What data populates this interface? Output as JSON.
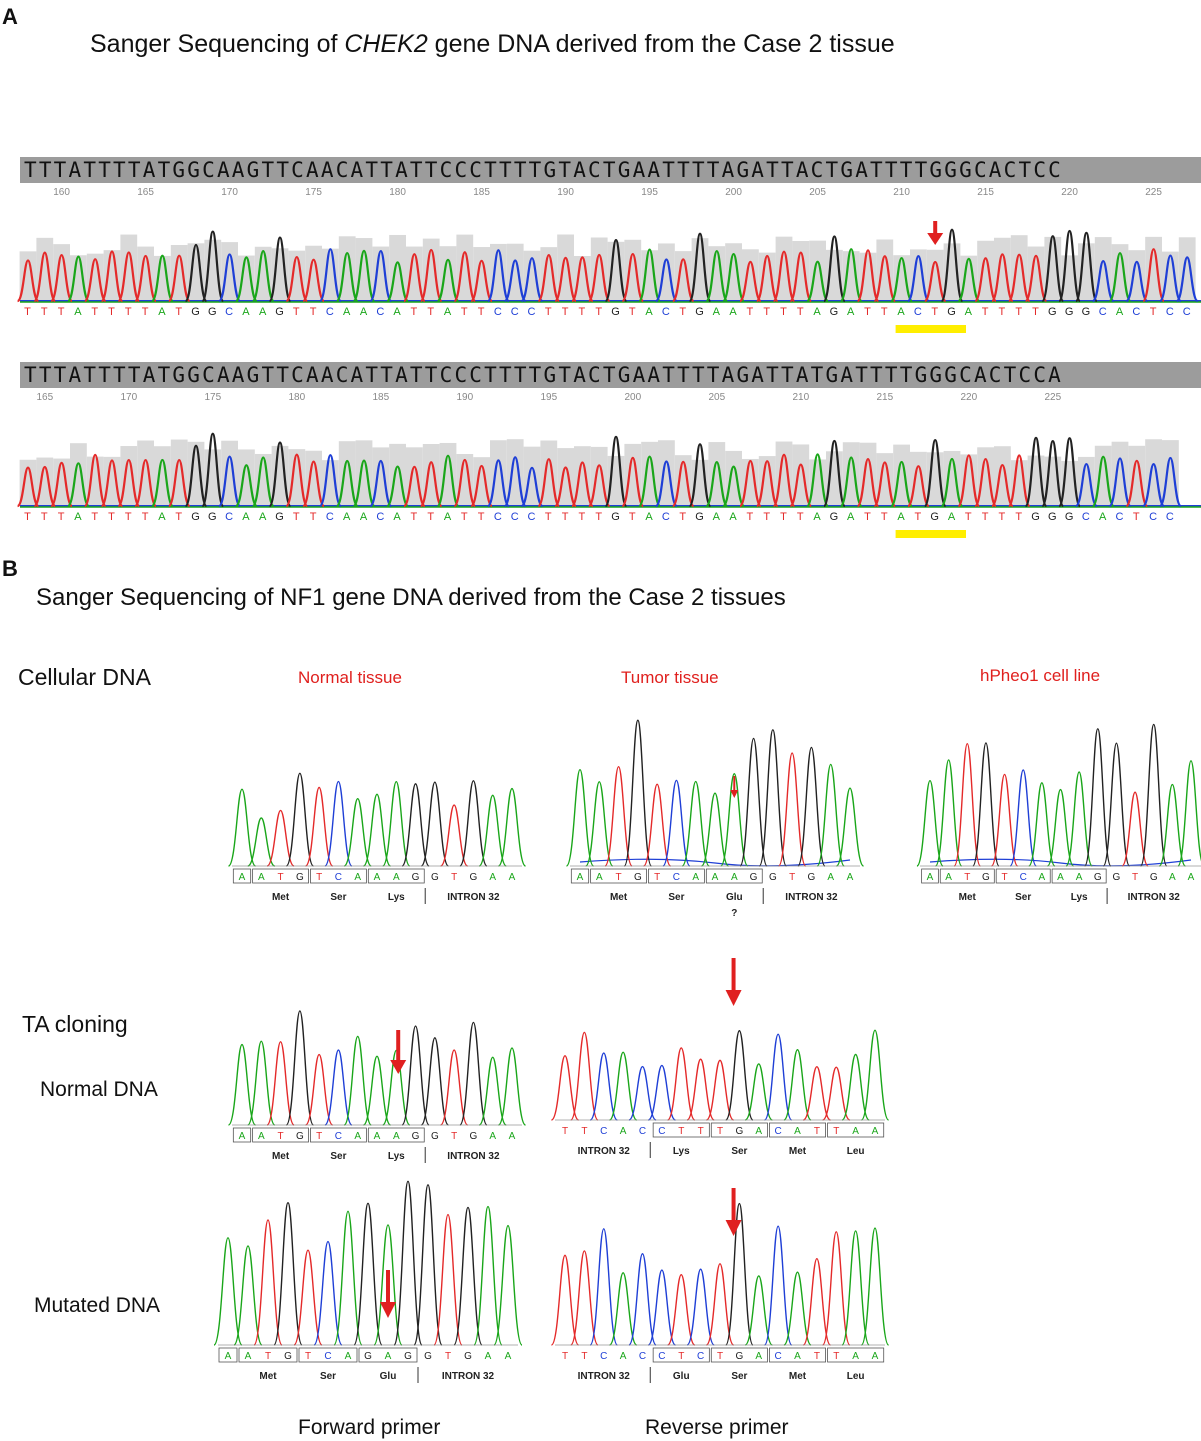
{
  "panel_a": {
    "letter": "A",
    "title_prefix": "Sanger Sequencing of ",
    "title_gene": "CHEK2",
    "title_suffix": " gene DNA derived from the Case 2 tissue",
    "track1": {
      "sequence": "TTTATTTTATGGCAAGTTCAACATTATTCCCTTTTGTACTGAATTTTAGATTACTGATTTTGGGCACTCC",
      "ticks": [
        "160",
        "165",
        "170",
        "175",
        "180",
        "185",
        "190",
        "195",
        "200",
        "205",
        "210",
        "215",
        "220",
        "225"
      ],
      "basecalls": "TTTATTTTATGGCAAGTTCAACATTATTCCCTTTTGTACTGAATTTTAGATTACTGATTTTGGGCACTCC",
      "highlight": "ACT"
    },
    "track2": {
      "sequence": "TTTATTTTATGGCAAGTTCAACATTATTCCCTTTTGTACTGAATTTTAGATTATGATTTTGGGCACTCCA",
      "ticks": [
        "165",
        "170",
        "175",
        "180",
        "185",
        "190",
        "195",
        "200",
        "205",
        "210",
        "215",
        "220",
        "225"
      ],
      "basecalls": "TTTATTTTATGGCAAGTTCAACATTATTCCCTTTTGTACTGAATTTTAGATTATGATTTTGGGCACTCC",
      "highlight": "ATG"
    }
  },
  "panel_b": {
    "letter": "B",
    "title": "Sanger Sequencing of NF1 gene DNA derived from the Case 2 tissues",
    "cellular_label": "Cellular DNA",
    "ta_label": "TA cloning",
    "normal_dna_label": "Normal DNA",
    "mutated_dna_label": "Mutated DNA",
    "forward_label": "Forward primer",
    "reverse_label": "Reverse primer",
    "samples": [
      {
        "label": "Normal tissue",
        "bases": [
          "A",
          "A",
          "T",
          "G",
          "T",
          "C",
          "A",
          "A",
          "A",
          "G",
          "G",
          "T",
          "G",
          "A",
          "A"
        ],
        "aa": [
          "Met",
          "Ser",
          "Lys"
        ],
        "intron": "INTRON 32",
        "extra": ""
      },
      {
        "label": "Tumor tissue",
        "bases": [
          "A",
          "A",
          "T",
          "G",
          "T",
          "C",
          "A",
          "A",
          "A",
          "G",
          "G",
          "T",
          "G",
          "A",
          "A"
        ],
        "aa": [
          "Met",
          "Ser",
          "Glu"
        ],
        "intron": "INTRON 32",
        "extra": "?"
      },
      {
        "label": "hPheo1 cell line",
        "bases": [
          "A",
          "A",
          "T",
          "G",
          "T",
          "C",
          "A",
          "A",
          "A",
          "G",
          "G",
          "T",
          "G",
          "A",
          "A"
        ],
        "aa": [
          "Met",
          "Ser",
          "Lys"
        ],
        "intron": "INTRON 32",
        "extra": ""
      }
    ],
    "ta_fwd_normal": {
      "bases": [
        "A",
        "A",
        "T",
        "G",
        "T",
        "C",
        "A",
        "A",
        "A",
        "G",
        "G",
        "T",
        "G",
        "A",
        "A"
      ],
      "aa": [
        "Met",
        "Ser",
        "Lys"
      ],
      "intron": "INTRON 32"
    },
    "ta_fwd_mut": {
      "bases": [
        "A",
        "A",
        "T",
        "G",
        "T",
        "C",
        "A",
        "G",
        "A",
        "G",
        "G",
        "T",
        "G",
        "A",
        "A"
      ],
      "aa": [
        "Met",
        "Ser",
        "Glu"
      ],
      "intron": "INTRON 32"
    },
    "ta_rev_normal": {
      "bases": [
        "T",
        "T",
        "C",
        "A",
        "C",
        "C",
        "T",
        "T",
        "T",
        "G",
        "A",
        "C",
        "A",
        "T",
        "T",
        "A",
        "A"
      ],
      "aa": [
        "Lys",
        "Ser",
        "Met",
        "Leu"
      ],
      "intron": "INTRON 32"
    },
    "ta_rev_mut": {
      "bases": [
        "T",
        "T",
        "C",
        "A",
        "C",
        "C",
        "T",
        "C",
        "T",
        "G",
        "A",
        "C",
        "A",
        "T",
        "T",
        "A",
        "A"
      ],
      "aa": [
        "Glu",
        "Ser",
        "Met",
        "Leu"
      ],
      "intron": "INTRON 32"
    }
  },
  "colors": {
    "A": "#1aa61a",
    "C": "#1f3fd6",
    "G": "#222222",
    "T": "#e42a2a",
    "highlight": "#ffee00",
    "arrow": "#e02020",
    "header_bg": "#9c9c9c",
    "quality": "#d9d9d9"
  }
}
